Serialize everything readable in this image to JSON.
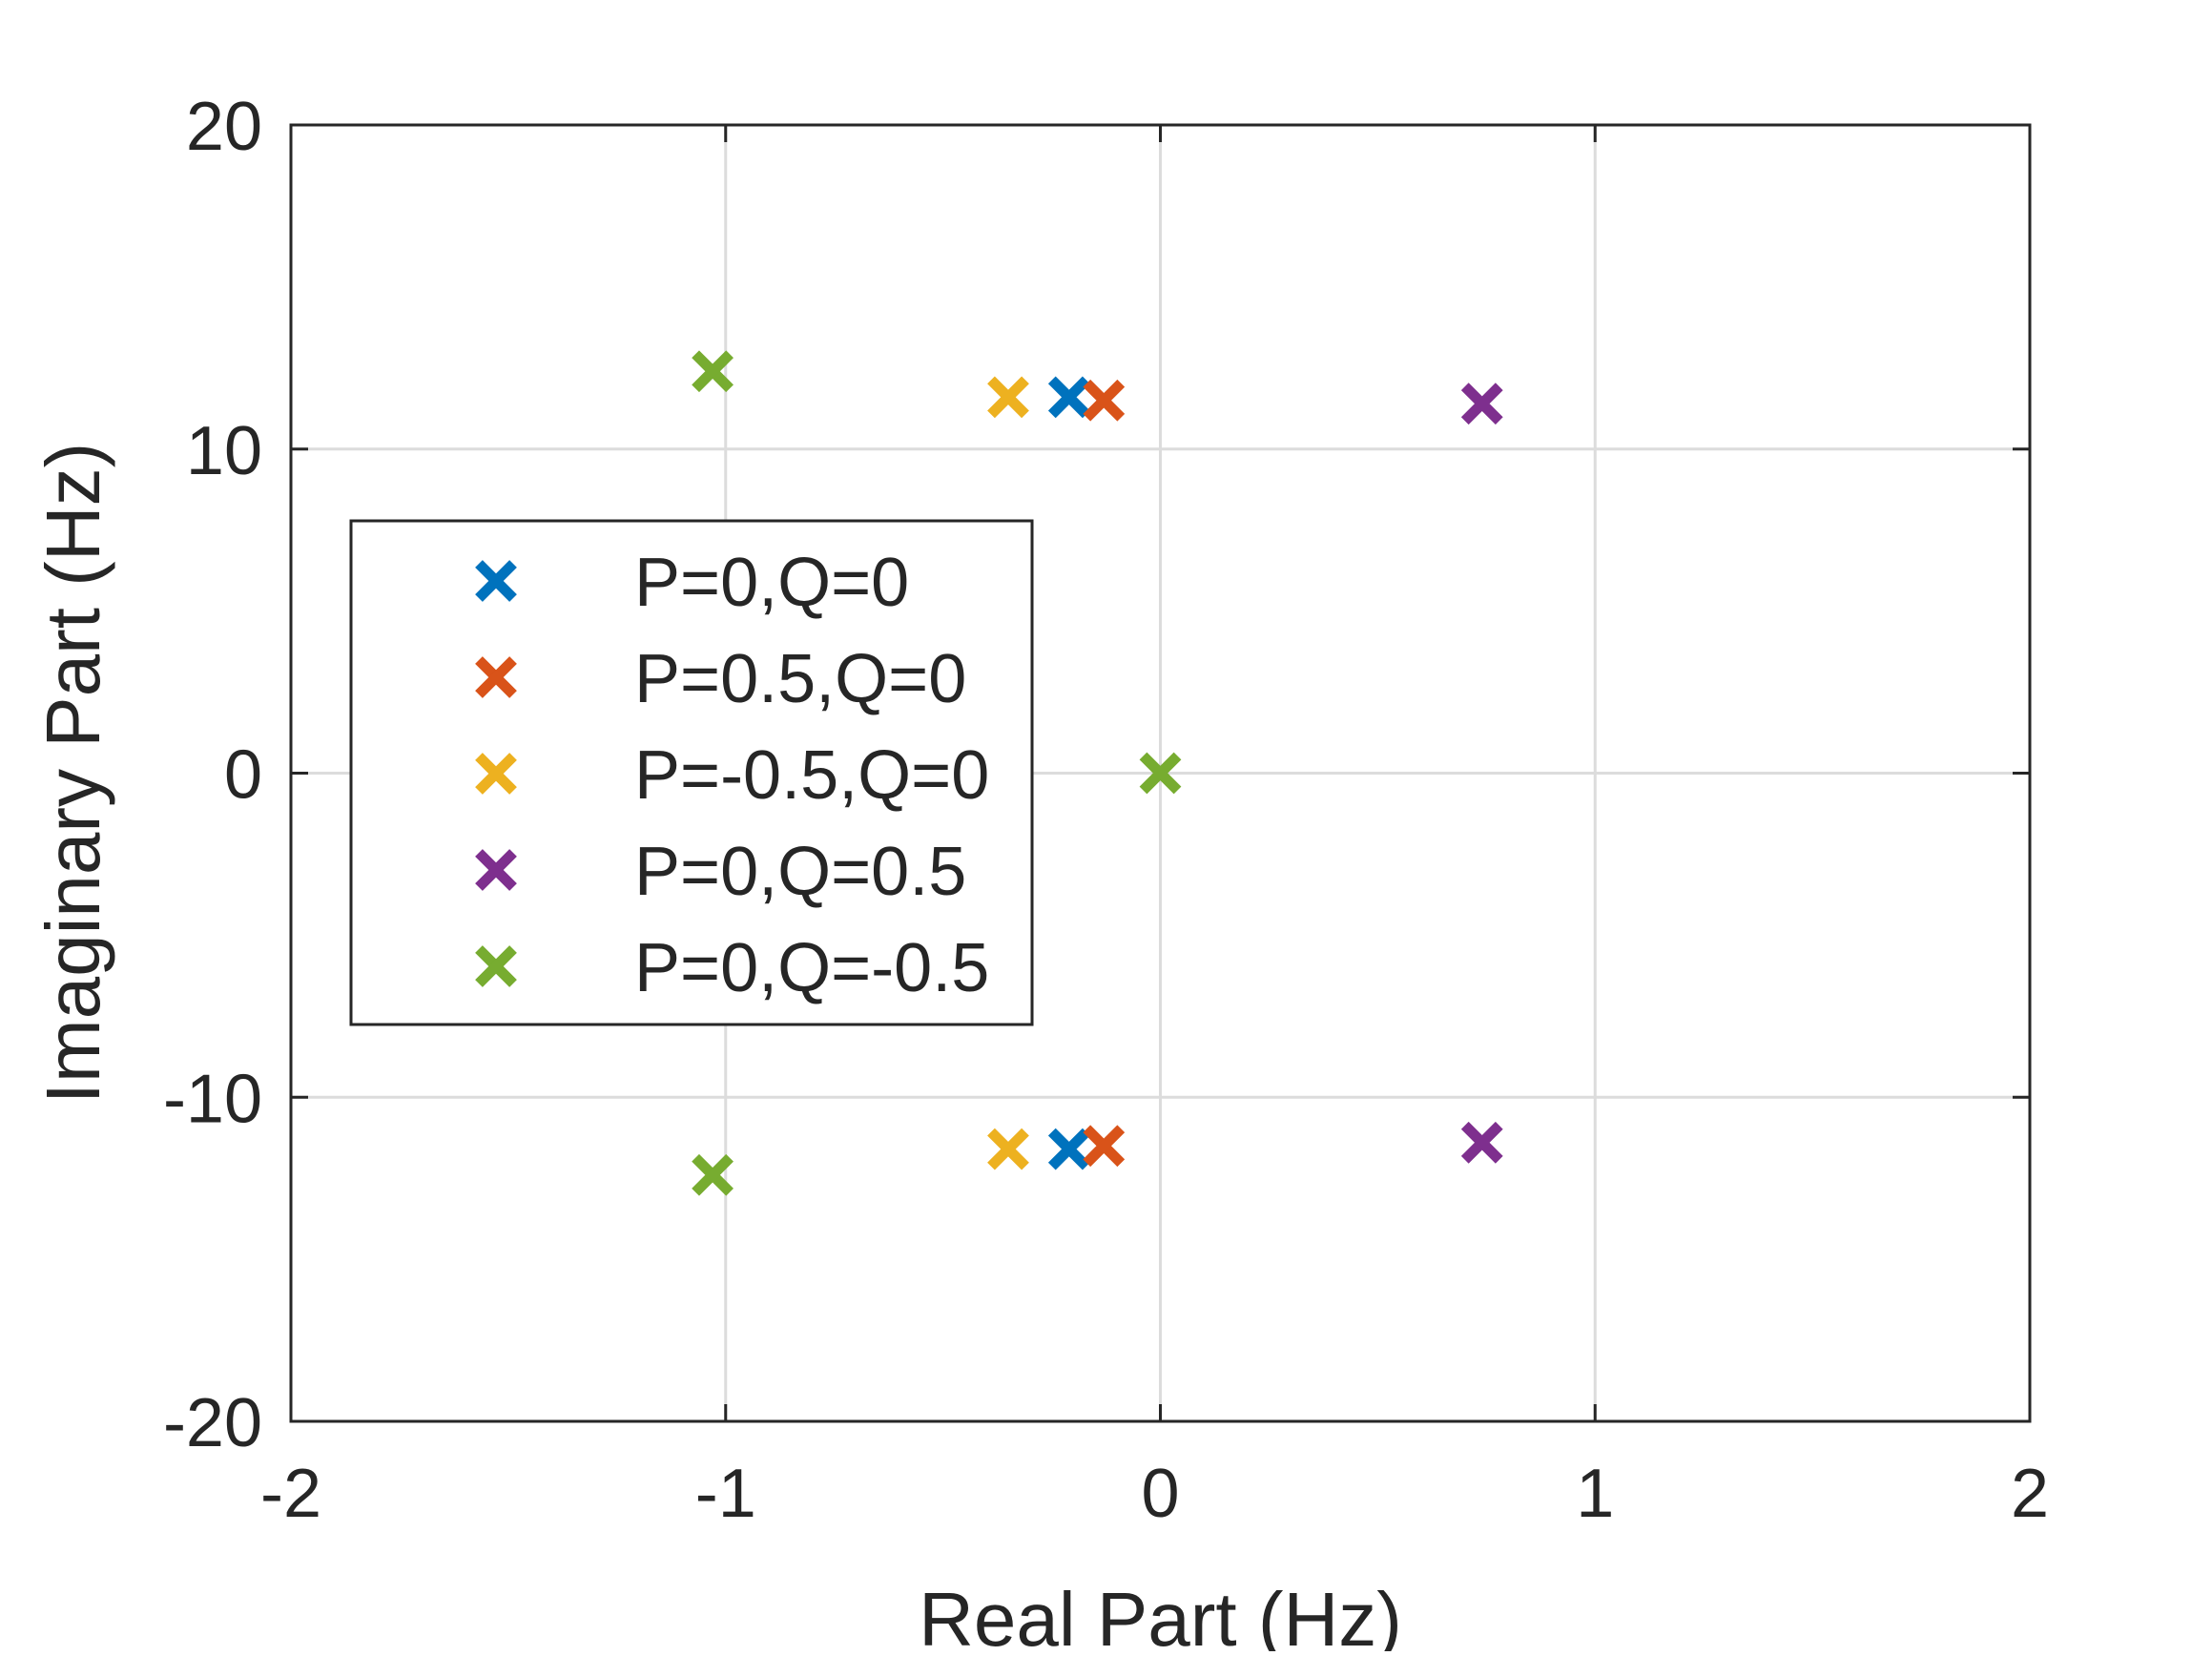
{
  "chart_data": {
    "type": "scatter",
    "title": "",
    "xlabel": "Real Part (Hz)",
    "ylabel": "Imaginary Part (Hz)",
    "xlim": [
      -2,
      2
    ],
    "ylim": [
      -20,
      20
    ],
    "xticks": [
      -2,
      -1,
      0,
      1,
      2
    ],
    "yticks": [
      -20,
      -10,
      0,
      10,
      20
    ],
    "xtick_labels": [
      "-2",
      "-1",
      "0",
      "1",
      "2"
    ],
    "ytick_labels": [
      "-20",
      "-10",
      "0",
      "10",
      "20"
    ],
    "grid": true,
    "legend_position": "left",
    "marker": "x",
    "series": [
      {
        "name": "P=0,Q=0",
        "color": "#0072BD",
        "points": [
          [
            -0.21,
            11.6
          ],
          [
            -0.21,
            -11.6
          ]
        ]
      },
      {
        "name": "P=0.5,Q=0",
        "color": "#D95319",
        "points": [
          [
            -0.13,
            11.5
          ],
          [
            -0.13,
            -11.5
          ]
        ]
      },
      {
        "name": "P=-0.5,Q=0",
        "color": "#EDB120",
        "points": [
          [
            -0.35,
            11.6
          ],
          [
            -0.35,
            -11.6
          ]
        ]
      },
      {
        "name": "P=0,Q=0.5",
        "color": "#7E2F8E",
        "points": [
          [
            0.74,
            11.4
          ],
          [
            0.74,
            -11.4
          ]
        ]
      },
      {
        "name": "P=0,Q=-0.5",
        "color": "#77AC30",
        "points": [
          [
            -1.03,
            12.4
          ],
          [
            -1.03,
            -12.4
          ],
          [
            0,
            0
          ]
        ]
      }
    ]
  }
}
